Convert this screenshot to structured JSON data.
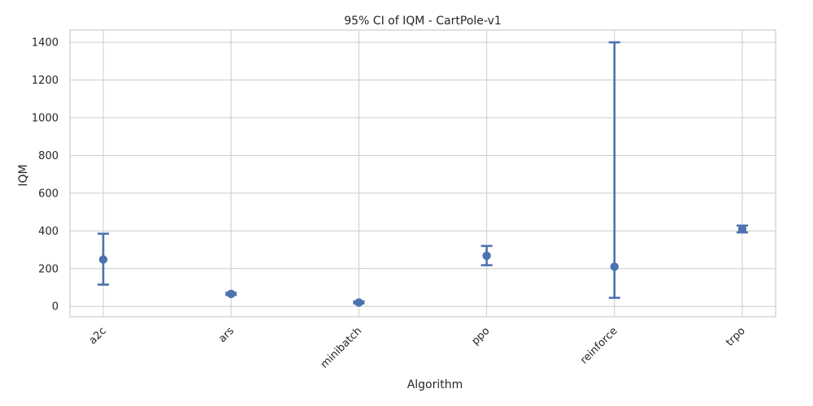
{
  "chart_data": {
    "type": "scatter",
    "title": "95% CI of IQM - CartPole-v1",
    "xlabel": "Algorithm",
    "ylabel": "IQM",
    "categories": [
      "a2c",
      "ars",
      "minibatch",
      "ppo",
      "reinforce",
      "trpo"
    ],
    "series": [
      {
        "values": [
          248,
          66,
          20,
          268,
          210,
          409
        ],
        "ci_low": [
          115,
          60,
          15,
          218,
          45,
          392
        ],
        "ci_high": [
          385,
          72,
          26,
          320,
          1400,
          428
        ]
      }
    ],
    "yticks": [
      0,
      200,
      400,
      600,
      800,
      1000,
      1200,
      1400
    ],
    "ylim": [
      -55,
      1465
    ],
    "grid": true,
    "color": "#4c72b0",
    "grid_color": "#cccccc",
    "tick_rotation": -45
  }
}
